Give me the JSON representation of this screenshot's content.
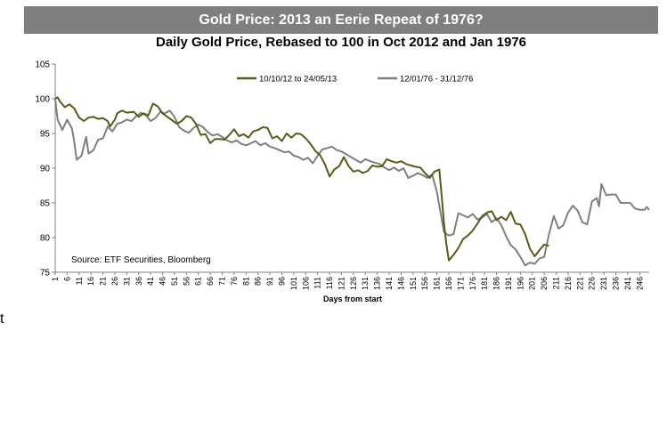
{
  "page": {
    "banner_title": "Gold Price: 2013 an Eerie Repeat of 1976?",
    "stray_text": "t"
  },
  "colors": {
    "banner_bg": "#7f7f7f",
    "series_2013": "#4e6118",
    "series_1976": "#7f7f7f",
    "axis": "#808080"
  },
  "chart_data": {
    "type": "line",
    "title": "Daily Gold Price, Rebased to 100 in Oct 2012 and Jan 1976",
    "xlabel": "Days from start",
    "ylabel": "",
    "ylim": [
      75,
      105
    ],
    "yticks": [
      75,
      80,
      85,
      90,
      95,
      100,
      105
    ],
    "xlim": [
      1,
      250
    ],
    "xtick_labels": [
      "1",
      "6",
      "11",
      "16",
      "21",
      "26",
      "31",
      "36",
      "41",
      "46",
      "51",
      "56",
      "61",
      "66",
      "71",
      "76",
      "81",
      "86",
      "91",
      "96",
      "101",
      "106",
      "111",
      "116",
      "121",
      "126",
      "131",
      "136",
      "141",
      "146",
      "151",
      "156",
      "161",
      "166",
      "171",
      "176",
      "181",
      "186",
      "191",
      "196",
      "201",
      "206",
      "211",
      "216",
      "221",
      "226",
      "231",
      "236",
      "241",
      "246"
    ],
    "grid": false,
    "legend_position": "top-center",
    "annotation": "Source: ETF Securities, Bloomberg",
    "series": [
      {
        "name": "10/10/12 to 24/05/13",
        "color": "#4e6118",
        "points": [
          [
            1,
            100
          ],
          [
            2,
            100.2
          ],
          [
            3,
            99.6
          ],
          [
            5,
            98.8
          ],
          [
            7,
            99.2
          ],
          [
            9,
            98.6
          ],
          [
            11,
            97.3
          ],
          [
            13,
            96.8
          ],
          [
            15,
            97.3
          ],
          [
            17,
            97.4
          ],
          [
            19,
            97.1
          ],
          [
            21,
            97.2
          ],
          [
            23,
            96.8
          ],
          [
            24,
            96.0
          ],
          [
            26,
            97.0
          ],
          [
            27,
            97.9
          ],
          [
            29,
            98.3
          ],
          [
            31,
            98.0
          ],
          [
            34,
            98.1
          ],
          [
            36,
            97.4
          ],
          [
            38,
            97.9
          ],
          [
            40,
            97.6
          ],
          [
            42,
            99.3
          ],
          [
            44,
            98.9
          ],
          [
            46,
            97.9
          ],
          [
            48,
            97.4
          ],
          [
            50,
            96.9
          ],
          [
            52,
            96.4
          ],
          [
            54,
            96.8
          ],
          [
            56,
            97.5
          ],
          [
            58,
            97.3
          ],
          [
            60,
            96.4
          ],
          [
            62,
            94.8
          ],
          [
            64,
            94.9
          ],
          [
            66,
            93.6
          ],
          [
            68,
            94.2
          ],
          [
            70,
            94.2
          ],
          [
            72,
            94.1
          ],
          [
            74,
            94.8
          ],
          [
            76,
            95.6
          ],
          [
            78,
            94.6
          ],
          [
            80,
            94.9
          ],
          [
            82,
            94.4
          ],
          [
            84,
            95.3
          ],
          [
            86,
            95.5
          ],
          [
            88,
            95.9
          ],
          [
            90,
            95.8
          ],
          [
            92,
            94.3
          ],
          [
            94,
            94.6
          ],
          [
            96,
            93.9
          ],
          [
            98,
            95.0
          ],
          [
            100,
            94.4
          ],
          [
            102,
            95.0
          ],
          [
            104,
            94.9
          ],
          [
            106,
            94.3
          ],
          [
            108,
            93.5
          ],
          [
            110,
            92.5
          ],
          [
            112,
            91.9
          ],
          [
            114,
            90.6
          ],
          [
            116,
            88.8
          ],
          [
            118,
            89.8
          ],
          [
            120,
            90.3
          ],
          [
            122,
            91.6
          ],
          [
            124,
            90.3
          ],
          [
            126,
            89.5
          ],
          [
            128,
            89.7
          ],
          [
            130,
            89.3
          ],
          [
            132,
            89.6
          ],
          [
            134,
            90.4
          ],
          [
            136,
            90.2
          ],
          [
            138,
            90.3
          ],
          [
            140,
            91.3
          ],
          [
            142,
            91.0
          ],
          [
            144,
            90.8
          ],
          [
            146,
            91.0
          ],
          [
            148,
            90.6
          ],
          [
            150,
            90.4
          ],
          [
            152,
            90.2
          ],
          [
            154,
            90.1
          ],
          [
            156,
            89.3
          ],
          [
            158,
            88.6
          ],
          [
            160,
            89.5
          ],
          [
            162,
            89.8
          ],
          [
            163,
            86.0
          ],
          [
            164,
            82.0
          ],
          [
            165,
            79.0
          ],
          [
            166,
            76.7
          ],
          [
            168,
            77.5
          ],
          [
            170,
            78.5
          ],
          [
            172,
            79.8
          ],
          [
            174,
            80.3
          ],
          [
            176,
            81.0
          ],
          [
            178,
            82.0
          ],
          [
            180,
            83.1
          ],
          [
            182,
            83.6
          ],
          [
            184,
            83.8
          ],
          [
            186,
            82.5
          ],
          [
            188,
            83.0
          ],
          [
            190,
            82.5
          ],
          [
            192,
            83.7
          ],
          [
            194,
            82.0
          ],
          [
            196,
            81.9
          ],
          [
            198,
            80.5
          ],
          [
            200,
            78.4
          ],
          [
            202,
            77.3
          ],
          [
            204,
            78.2
          ],
          [
            206,
            79.0
          ],
          [
            208,
            78.8
          ]
        ]
      },
      {
        "name": "12/01/76 - 31/12/76",
        "color": "#7f7f7f",
        "points": [
          [
            1,
            100
          ],
          [
            2,
            97
          ],
          [
            4,
            95.5
          ],
          [
            6,
            97.0
          ],
          [
            8,
            95.7
          ],
          [
            9,
            93.8
          ],
          [
            10,
            91.2
          ],
          [
            12,
            91.8
          ],
          [
            14,
            94.5
          ],
          [
            15,
            92.1
          ],
          [
            17,
            92.6
          ],
          [
            19,
            94.1
          ],
          [
            21,
            94.3
          ],
          [
            23,
            96.0
          ],
          [
            25,
            95.3
          ],
          [
            27,
            96.4
          ],
          [
            29,
            96.6
          ],
          [
            31,
            97.0
          ],
          [
            33,
            96.8
          ],
          [
            35,
            97.5
          ],
          [
            37,
            98.0
          ],
          [
            39,
            97.6
          ],
          [
            41,
            96.8
          ],
          [
            43,
            97.2
          ],
          [
            45,
            98.1
          ],
          [
            47,
            97.9
          ],
          [
            49,
            98.3
          ],
          [
            51,
            97.4
          ],
          [
            53,
            95.9
          ],
          [
            55,
            95.4
          ],
          [
            57,
            95.1
          ],
          [
            59,
            95.8
          ],
          [
            61,
            96.3
          ],
          [
            63,
            95.9
          ],
          [
            65,
            95.2
          ],
          [
            67,
            94.7
          ],
          [
            69,
            94.9
          ],
          [
            71,
            94.5
          ],
          [
            73,
            94.0
          ],
          [
            75,
            93.7
          ],
          [
            77,
            94.0
          ],
          [
            79,
            93.5
          ],
          [
            81,
            93.3
          ],
          [
            83,
            93.6
          ],
          [
            85,
            93.9
          ],
          [
            87,
            93.3
          ],
          [
            89,
            93.6
          ],
          [
            91,
            93.1
          ],
          [
            93,
            92.9
          ],
          [
            95,
            92.6
          ],
          [
            97,
            92.3
          ],
          [
            99,
            92.4
          ],
          [
            101,
            91.8
          ],
          [
            103,
            91.6
          ],
          [
            105,
            91.2
          ],
          [
            107,
            91.5
          ],
          [
            109,
            90.7
          ],
          [
            111,
            91.8
          ],
          [
            113,
            92.7
          ],
          [
            115,
            92.9
          ],
          [
            117,
            93.1
          ],
          [
            119,
            92.6
          ],
          [
            121,
            92.4
          ],
          [
            123,
            92.0
          ],
          [
            125,
            91.6
          ],
          [
            127,
            91.2
          ],
          [
            129,
            90.8
          ],
          [
            131,
            91.3
          ],
          [
            133,
            91.0
          ],
          [
            135,
            90.8
          ],
          [
            137,
            90.6
          ],
          [
            139,
            90.1
          ],
          [
            141,
            89.7
          ],
          [
            143,
            90.1
          ],
          [
            145,
            89.6
          ],
          [
            147,
            90.0
          ],
          [
            149,
            88.6
          ],
          [
            151,
            88.9
          ],
          [
            153,
            89.3
          ],
          [
            155,
            89.0
          ],
          [
            157,
            88.6
          ],
          [
            159,
            89.1
          ],
          [
            161,
            86.6
          ],
          [
            162,
            84.6
          ],
          [
            164,
            80.8
          ],
          [
            166,
            80.3
          ],
          [
            168,
            80.5
          ],
          [
            170,
            83.5
          ],
          [
            172,
            83.2
          ],
          [
            174,
            82.9
          ],
          [
            176,
            83.4
          ],
          [
            178,
            82.6
          ],
          [
            180,
            82.9
          ],
          [
            182,
            83.4
          ],
          [
            184,
            82.2
          ],
          [
            186,
            82.8
          ],
          [
            188,
            81.8
          ],
          [
            190,
            80.2
          ],
          [
            192,
            78.9
          ],
          [
            194,
            78.3
          ],
          [
            196,
            77.2
          ],
          [
            198,
            76.0
          ],
          [
            200,
            76.4
          ],
          [
            202,
            76.2
          ],
          [
            204,
            77.0
          ],
          [
            206,
            77.2
          ],
          [
            208,
            80.5
          ],
          [
            210,
            83.1
          ],
          [
            212,
            81.3
          ],
          [
            214,
            81.8
          ],
          [
            216,
            83.6
          ],
          [
            218,
            84.6
          ],
          [
            220,
            83.9
          ],
          [
            222,
            82.2
          ],
          [
            224,
            81.9
          ],
          [
            226,
            85.2
          ],
          [
            228,
            85.7
          ],
          [
            229,
            84.5
          ],
          [
            230,
            87.7
          ],
          [
            232,
            86.1
          ],
          [
            234,
            86.2
          ],
          [
            236,
            86.2
          ],
          [
            238,
            85.0
          ],
          [
            240,
            85.0
          ],
          [
            242,
            85.0
          ],
          [
            244,
            84.2
          ],
          [
            246,
            84.0
          ],
          [
            248,
            84.0
          ],
          [
            249,
            84.4
          ],
          [
            250,
            84.0
          ]
        ]
      }
    ]
  }
}
